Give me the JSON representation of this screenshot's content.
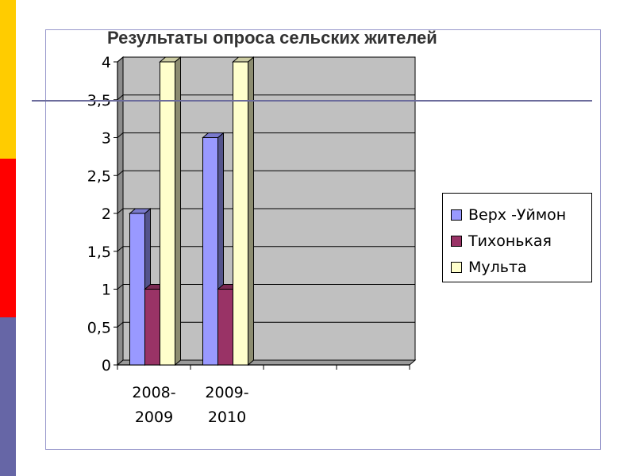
{
  "decor": {
    "strip_colors": [
      "#ffcc00",
      "#ff0000",
      "#6666a6"
    ],
    "rule_color": "#6c6c9c"
  },
  "chart_data": {
    "type": "bar",
    "title": "Результаты опроса сельских жителей",
    "categories": [
      "2008-\n2009",
      "2009-\n2010",
      "",
      ""
    ],
    "series": [
      {
        "name": "Верх -Уймон",
        "values": [
          2,
          3,
          null,
          null
        ],
        "color": "#9999ff"
      },
      {
        "name": "Тихонькая",
        "values": [
          1,
          1,
          null,
          null
        ],
        "color": "#993366"
      },
      {
        "name": "Мульта",
        "values": [
          4,
          4,
          null,
          null
        ],
        "color": "#ffffcc"
      }
    ],
    "yticks": [
      "0",
      "0,5",
      "1",
      "1,5",
      "2",
      "2,5",
      "3",
      "3,5",
      "4"
    ],
    "ylim": [
      0,
      4
    ],
    "grid": true,
    "plot_background": "#c0c0c0",
    "legend_position": "right",
    "xlabel": "",
    "ylabel": ""
  }
}
